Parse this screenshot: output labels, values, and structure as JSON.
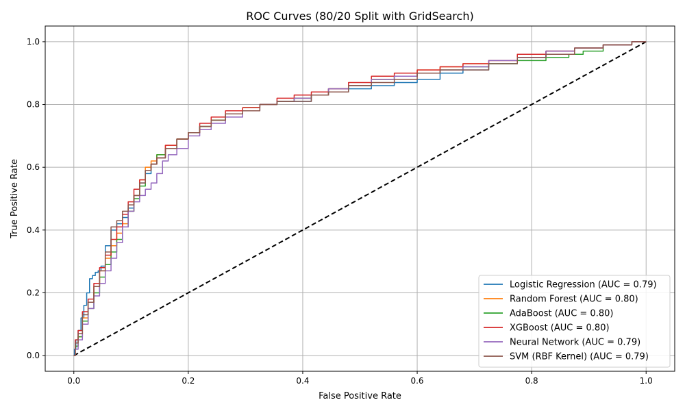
{
  "chart_data": {
    "type": "line",
    "title": "ROC Curves (80/20 Split with GridSearch)",
    "xlabel": "False Positive Rate",
    "ylabel": "True Positive Rate",
    "xlim": [
      -0.05,
      1.05
    ],
    "ylim": [
      -0.05,
      1.05
    ],
    "xticks": [
      0.0,
      0.2,
      0.4,
      0.6,
      0.8,
      1.0
    ],
    "yticks": [
      0.0,
      0.2,
      0.4,
      0.6,
      0.8,
      1.0
    ],
    "xtick_labels": [
      "0.0",
      "0.2",
      "0.4",
      "0.6",
      "0.8",
      "1.0"
    ],
    "ytick_labels": [
      "0.0",
      "0.2",
      "0.4",
      "0.6",
      "0.8",
      "1.0"
    ],
    "grid": true,
    "legend_position": "bottom-right",
    "series": [
      {
        "name": "Logistic Regression (AUC = 0.79)",
        "color": "#1f77b4",
        "x": [
          0,
          0.002,
          0.005,
          0.01,
          0.015,
          0.02,
          0.025,
          0.03,
          0.035,
          0.04,
          0.045,
          0.05,
          0.06,
          0.07,
          0.08,
          0.09,
          0.1,
          0.11,
          0.12,
          0.13,
          0.14,
          0.15,
          0.17,
          0.19,
          0.21,
          0.23,
          0.25,
          0.28,
          0.31,
          0.34,
          0.37,
          0.4,
          0.43,
          0.46,
          0.5,
          0.54,
          0.58,
          0.62,
          0.66,
          0.7,
          0.75,
          0.8,
          0.85,
          0.9,
          0.95,
          1.0
        ],
        "y": [
          0,
          0.02,
          0.05,
          0.08,
          0.12,
          0.16,
          0.2,
          0.245,
          0.255,
          0.265,
          0.27,
          0.285,
          0.35,
          0.4,
          0.42,
          0.44,
          0.47,
          0.51,
          0.55,
          0.58,
          0.61,
          0.63,
          0.66,
          0.69,
          0.71,
          0.73,
          0.75,
          0.77,
          0.78,
          0.8,
          0.81,
          0.81,
          0.83,
          0.84,
          0.85,
          0.86,
          0.87,
          0.88,
          0.9,
          0.91,
          0.93,
          0.95,
          0.97,
          0.98,
          0.99,
          1.0
        ]
      },
      {
        "name": "Random Forest (AUC = 0.80)",
        "color": "#ff7f0e",
        "x": [
          0,
          0.005,
          0.01,
          0.02,
          0.03,
          0.04,
          0.05,
          0.06,
          0.07,
          0.08,
          0.09,
          0.1,
          0.11,
          0.12,
          0.13,
          0.14,
          0.15,
          0.17,
          0.19,
          0.21,
          0.23,
          0.25,
          0.28,
          0.31,
          0.34,
          0.37,
          0.4,
          0.43,
          0.46,
          0.5,
          0.54,
          0.58,
          0.62,
          0.66,
          0.7,
          0.75,
          0.8,
          0.85,
          0.9,
          0.95,
          1.0
        ],
        "y": [
          0,
          0.03,
          0.06,
          0.12,
          0.17,
          0.22,
          0.27,
          0.31,
          0.35,
          0.39,
          0.42,
          0.46,
          0.51,
          0.56,
          0.6,
          0.62,
          0.64,
          0.67,
          0.69,
          0.71,
          0.73,
          0.75,
          0.77,
          0.79,
          0.8,
          0.81,
          0.82,
          0.83,
          0.85,
          0.86,
          0.88,
          0.89,
          0.91,
          0.92,
          0.93,
          0.94,
          0.96,
          0.97,
          0.98,
          0.99,
          1.0
        ]
      },
      {
        "name": "AdaBoost (AUC = 0.80)",
        "color": "#2ca02c",
        "x": [
          0,
          0.005,
          0.01,
          0.02,
          0.03,
          0.04,
          0.05,
          0.06,
          0.07,
          0.08,
          0.09,
          0.1,
          0.11,
          0.12,
          0.13,
          0.14,
          0.15,
          0.17,
          0.19,
          0.21,
          0.23,
          0.25,
          0.28,
          0.31,
          0.34,
          0.37,
          0.4,
          0.43,
          0.46,
          0.5,
          0.54,
          0.58,
          0.62,
          0.66,
          0.7,
          0.75,
          0.8,
          0.85,
          0.88,
          0.9,
          0.95,
          1.0
        ],
        "y": [
          0,
          0.03,
          0.06,
          0.11,
          0.15,
          0.2,
          0.25,
          0.29,
          0.33,
          0.37,
          0.41,
          0.46,
          0.5,
          0.54,
          0.59,
          0.61,
          0.64,
          0.66,
          0.69,
          0.71,
          0.73,
          0.75,
          0.77,
          0.79,
          0.8,
          0.81,
          0.82,
          0.83,
          0.85,
          0.86,
          0.88,
          0.89,
          0.9,
          0.91,
          0.92,
          0.93,
          0.94,
          0.95,
          0.96,
          0.97,
          0.99,
          1.0
        ]
      },
      {
        "name": "XGBoost (AUC = 0.80)",
        "color": "#d62728",
        "x": [
          0,
          0.005,
          0.01,
          0.02,
          0.03,
          0.04,
          0.05,
          0.06,
          0.07,
          0.08,
          0.09,
          0.1,
          0.11,
          0.12,
          0.13,
          0.14,
          0.15,
          0.17,
          0.19,
          0.21,
          0.23,
          0.25,
          0.28,
          0.31,
          0.34,
          0.37,
          0.4,
          0.43,
          0.46,
          0.5,
          0.54,
          0.58,
          0.62,
          0.66,
          0.7,
          0.75,
          0.8,
          0.85,
          0.9,
          0.95,
          1.0
        ],
        "y": [
          0,
          0.05,
          0.08,
          0.14,
          0.18,
          0.23,
          0.28,
          0.32,
          0.37,
          0.41,
          0.45,
          0.49,
          0.53,
          0.56,
          0.59,
          0.61,
          0.63,
          0.67,
          0.69,
          0.71,
          0.74,
          0.76,
          0.78,
          0.79,
          0.8,
          0.82,
          0.83,
          0.84,
          0.85,
          0.87,
          0.89,
          0.9,
          0.91,
          0.92,
          0.93,
          0.94,
          0.96,
          0.97,
          0.98,
          0.99,
          1.0
        ]
      },
      {
        "name": "Neural Network (AUC = 0.79)",
        "color": "#9467bd",
        "x": [
          0,
          0.005,
          0.01,
          0.02,
          0.03,
          0.04,
          0.05,
          0.06,
          0.07,
          0.08,
          0.09,
          0.1,
          0.11,
          0.12,
          0.13,
          0.14,
          0.15,
          0.16,
          0.17,
          0.19,
          0.21,
          0.23,
          0.25,
          0.28,
          0.31,
          0.34,
          0.37,
          0.4,
          0.43,
          0.46,
          0.5,
          0.54,
          0.58,
          0.62,
          0.66,
          0.7,
          0.75,
          0.8,
          0.85,
          0.9,
          0.95,
          1.0
        ],
        "y": [
          0,
          0.02,
          0.05,
          0.1,
          0.15,
          0.19,
          0.23,
          0.27,
          0.31,
          0.36,
          0.41,
          0.46,
          0.49,
          0.51,
          0.53,
          0.55,
          0.58,
          0.62,
          0.64,
          0.66,
          0.7,
          0.72,
          0.74,
          0.76,
          0.78,
          0.8,
          0.81,
          0.82,
          0.83,
          0.85,
          0.86,
          0.88,
          0.89,
          0.9,
          0.91,
          0.92,
          0.94,
          0.95,
          0.97,
          0.98,
          0.99,
          1.0
        ]
      },
      {
        "name": "SVM (RBF Kernel) (AUC = 0.79)",
        "color": "#8c564b",
        "x": [
          0,
          0.005,
          0.01,
          0.02,
          0.03,
          0.04,
          0.05,
          0.06,
          0.07,
          0.08,
          0.09,
          0.1,
          0.11,
          0.12,
          0.13,
          0.14,
          0.15,
          0.17,
          0.19,
          0.21,
          0.23,
          0.25,
          0.28,
          0.31,
          0.34,
          0.37,
          0.4,
          0.43,
          0.46,
          0.5,
          0.54,
          0.58,
          0.62,
          0.66,
          0.7,
          0.75,
          0.8,
          0.85,
          0.9,
          0.95,
          1.0
        ],
        "y": [
          0,
          0.04,
          0.07,
          0.13,
          0.17,
          0.22,
          0.27,
          0.33,
          0.41,
          0.43,
          0.46,
          0.48,
          0.51,
          0.55,
          0.59,
          0.61,
          0.63,
          0.66,
          0.69,
          0.71,
          0.73,
          0.75,
          0.77,
          0.78,
          0.8,
          0.81,
          0.81,
          0.83,
          0.84,
          0.86,
          0.87,
          0.88,
          0.9,
          0.91,
          0.91,
          0.93,
          0.95,
          0.96,
          0.98,
          0.99,
          1.0
        ]
      }
    ],
    "reference_line": {
      "style": "dashed",
      "color": "#000000",
      "x": [
        0,
        1
      ],
      "y": [
        0,
        1
      ]
    }
  }
}
